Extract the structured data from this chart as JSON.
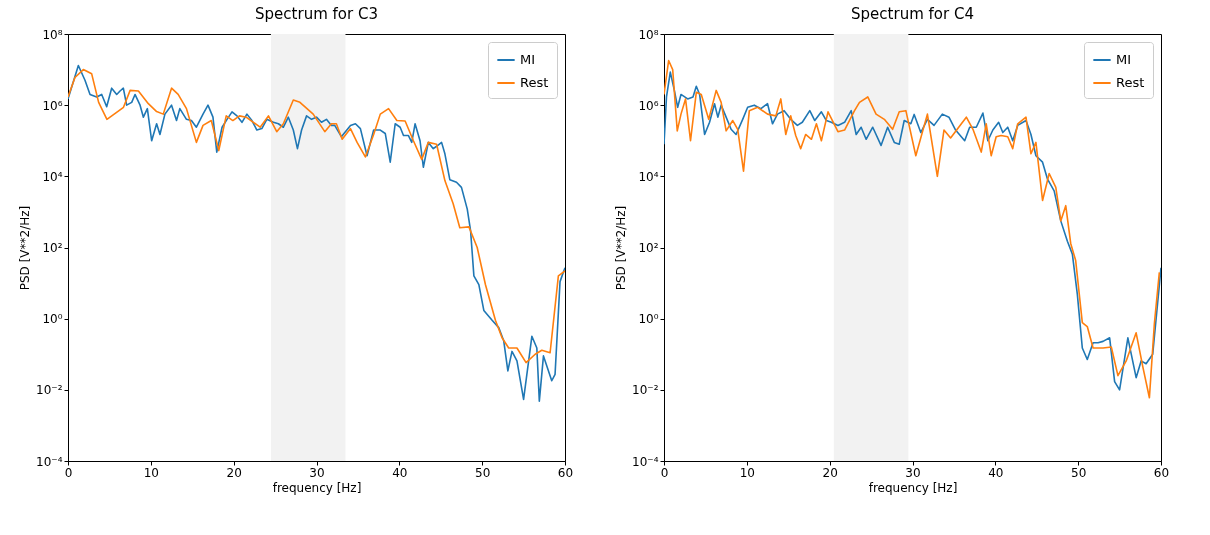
{
  "chart_data": [
    {
      "type": "line",
      "title": "Spectrum for C3",
      "xlabel": "frequency [Hz]",
      "ylabel": "PSD [V**2/Hz]",
      "log": "y",
      "legend": "top right",
      "xlim": [
        0,
        60
      ],
      "xticks": [
        0,
        10,
        20,
        30,
        40,
        50,
        60
      ],
      "ylim": [
        0.0001,
        100000000
      ],
      "yticks": [
        {
          "value": 0.0001,
          "label": "10⁻⁴"
        },
        {
          "value": 0.01,
          "label": "10⁻²"
        },
        {
          "value": 1,
          "label": "10⁰"
        },
        {
          "value": 100,
          "label": "10²"
        },
        {
          "value": 10000,
          "label": "10⁴"
        },
        {
          "value": 1000000,
          "label": "10⁶"
        },
        {
          "value": 100000000,
          "label": "10⁸"
        }
      ],
      "bands": [
        {
          "axis": "x",
          "from": 24.5,
          "to": 33.5,
          "color": "#f2f2f2"
        }
      ],
      "series": [
        {
          "name": "MI",
          "color": "#1f77b4",
          "x": [
            0,
            1.25,
            2.05,
            2.66,
            3.46,
            4.07,
            4.67,
            5.27,
            5.88,
            6.28,
            6.68,
            7.08,
            7.69,
            8.09,
            8.7,
            9.1,
            9.58,
            10.1,
            10.7,
            11.1,
            11.7,
            12.5,
            13.1,
            13.5,
            14.3,
            14.9,
            15.5,
            16.3,
            16.9,
            17.5,
            17.96,
            18.6,
            19.2,
            19.8,
            20.4,
            21.0,
            21.6,
            22.2,
            22.8,
            23.4,
            24.0,
            24.8,
            25.4,
            26.0,
            26.6,
            27.2,
            27.7,
            28.2,
            28.8,
            29.4,
            30.0,
            30.6,
            31.2,
            31.8,
            32.2,
            33.0,
            34.1,
            34.7,
            35.3,
            36.1,
            36.9,
            37.7,
            38.3,
            38.9,
            39.5,
            40.1,
            40.5,
            41.1,
            41.5,
            41.9,
            42.5,
            42.9,
            43.5,
            44.1,
            44.5,
            45.1,
            45.5,
            46.1,
            46.9,
            47.5,
            48.2,
            48.6,
            49.0,
            49.6,
            50.2,
            51.2,
            52.0,
            52.6,
            53.1,
            53.6,
            54.2,
            55.0,
            56.0,
            56.6,
            56.9,
            57.4,
            58.4,
            58.8,
            59.4,
            60.0
          ],
          "values": [
            1500000,
            13000000,
            5000000,
            2000000,
            1700000,
            2000000,
            900000,
            3000000,
            2000000,
            2500000,
            3000000,
            1000000,
            1200000,
            2000000,
            1000000,
            460000,
            800000,
            100000,
            300000,
            150000,
            560000,
            1000000,
            370000,
            800000,
            400000,
            370000,
            240000,
            560000,
            1000000,
            460000,
            48000,
            240000,
            400000,
            650000,
            500000,
            330000,
            560000,
            370000,
            200000,
            220000,
            400000,
            330000,
            300000,
            240000,
            460000,
            200000,
            60000,
            200000,
            500000,
            400000,
            460000,
            330000,
            400000,
            270000,
            270000,
            130000,
            270000,
            300000,
            220000,
            38000,
            200000,
            200000,
            160000,
            25000,
            300000,
            240000,
            140000,
            140000,
            90000,
            300000,
            100000,
            18000,
            90000,
            60000,
            70000,
            90000,
            43000,
            8000,
            6800,
            4900,
            1200,
            300,
            16,
            9,
            1.7,
            0.9,
            0.56,
            0.24,
            0.034,
            0.12,
            0.065,
            0.0054,
            0.32,
            0.15,
            0.0048,
            0.09,
            0.018,
            0.027,
            11,
            27
          ]
        },
        {
          "name": "Rest",
          "color": "#ff7f0e",
          "x": [
            0,
            0.84,
            1.85,
            2.86,
            3.7,
            4.7,
            6.7,
            7.5,
            8.5,
            9.7,
            10.7,
            11.5,
            12.5,
            13.3,
            14.3,
            15.5,
            16.3,
            17.3,
            18.2,
            19.1,
            19.9,
            20.7,
            21.5,
            23.2,
            24.2,
            25.2,
            26.0,
            27.2,
            28.0,
            29.6,
            31.0,
            31.8,
            32.4,
            33.1,
            34.1,
            34.9,
            35.9,
            36.9,
            37.7,
            38.7,
            39.7,
            40.7,
            41.7,
            42.7,
            43.5,
            44.5,
            45.5,
            46.5,
            47.3,
            48.4,
            49.4,
            50.4,
            51.6,
            52.4,
            53.2,
            54.2,
            55.3,
            56.4,
            57.2,
            58.2,
            59.2,
            60.0
          ],
          "values": [
            1700000,
            6000000,
            10000000,
            7600000,
            1200000,
            400000,
            870000,
            2600000,
            2500000,
            1100000,
            660000,
            560000,
            3000000,
            2000000,
            800000,
            90000,
            270000,
            370000,
            53000,
            500000,
            370000,
            500000,
            460000,
            240000,
            500000,
            180000,
            300000,
            1400000,
            1200000,
            560000,
            180000,
            300000,
            300000,
            110000,
            220000,
            90000,
            35000,
            150000,
            560000,
            800000,
            370000,
            360000,
            100000,
            30000,
            90000,
            80000,
            7600,
            1700,
            360,
            380,
            100,
            9,
            0.9,
            0.29,
            0.15,
            0.15,
            0.058,
            0.1,
            0.13,
            0.11,
            16,
            22
          ]
        }
      ]
    },
    {
      "type": "line",
      "title": "Spectrum for C4",
      "xlabel": "frequency [Hz]",
      "ylabel": "PSD [V**2/Hz]",
      "log": "y",
      "legend": "top right",
      "xlim": [
        0,
        60
      ],
      "xticks": [
        0,
        10,
        20,
        30,
        40,
        50,
        60
      ],
      "ylim": [
        0.0001,
        100000000
      ],
      "yticks": [
        {
          "value": 0.0001,
          "label": "10⁻⁴"
        },
        {
          "value": 0.01,
          "label": "10⁻²"
        },
        {
          "value": 1,
          "label": "10⁰"
        },
        {
          "value": 100,
          "label": "10²"
        },
        {
          "value": 10000,
          "label": "10⁴"
        },
        {
          "value": 1000000,
          "label": "10⁶"
        },
        {
          "value": 100000000,
          "label": "10⁸"
        }
      ],
      "bands": [
        {
          "axis": "x",
          "from": 20.5,
          "to": 29.5,
          "color": "#f2f2f2"
        }
      ],
      "series": [
        {
          "name": "MI",
          "color": "#1f77b4",
          "x": [
            0,
            0.3,
            0.76,
            1.25,
            1.65,
            2.05,
            2.86,
            3.5,
            3.9,
            4.3,
            4.9,
            5.5,
            6.1,
            6.5,
            6.9,
            7.5,
            8.1,
            8.7,
            9.5,
            10.1,
            10.9,
            11.7,
            12.5,
            13.1,
            13.7,
            14.5,
            15.3,
            16.1,
            16.7,
            17.6,
            18.2,
            19.0,
            19.6,
            20.2,
            21.0,
            21.8,
            22.6,
            23.2,
            23.8,
            24.4,
            25.2,
            26.2,
            27.0,
            27.8,
            28.4,
            29.0,
            29.8,
            30.2,
            31.0,
            31.8,
            32.6,
            33.6,
            34.4,
            35.2,
            36.3,
            36.9,
            37.7,
            38.5,
            39.1,
            39.7,
            40.4,
            40.9,
            41.5,
            42.1,
            42.7,
            43.7,
            44.3,
            44.9,
            45.7,
            46.3,
            47.1,
            47.9,
            48.7,
            49.3,
            49.9,
            50.5,
            51.1,
            51.8,
            52.4,
            53.0,
            53.8,
            54.4,
            55.0,
            56.0,
            57.0,
            57.6,
            58.2,
            59.0,
            60.0
          ],
          "values": [
            80000,
            1700000,
            8500000,
            2600000,
            870000,
            2000000,
            1500000,
            1700000,
            3400000,
            2000000,
            150000,
            330000,
            1100000,
            460000,
            1000000,
            460000,
            210000,
            150000,
            400000,
            870000,
            1000000,
            800000,
            1100000,
            300000,
            560000,
            700000,
            400000,
            270000,
            330000,
            700000,
            370000,
            650000,
            370000,
            330000,
            270000,
            330000,
            700000,
            150000,
            240000,
            110000,
            240000,
            74000,
            240000,
            90000,
            80000,
            370000,
            300000,
            550000,
            170000,
            400000,
            270000,
            560000,
            460000,
            200000,
            100000,
            240000,
            240000,
            600000,
            100000,
            200000,
            330000,
            170000,
            240000,
            100000,
            270000,
            370000,
            150000,
            38000,
            25000,
            8300,
            3900,
            560,
            150,
            65,
            4.8,
            0.15,
            0.071,
            0.21,
            0.21,
            0.23,
            0.29,
            0.017,
            0.01,
            0.29,
            0.022,
            0.065,
            0.054,
            0.1,
            27
          ]
        },
        {
          "name": "Rest",
          "color": "#ff7f0e",
          "x": [
            0,
            0.56,
            1.05,
            1.6,
            2.05,
            2.6,
            3.2,
            3.9,
            4.5,
            5.4,
            6.3,
            6.9,
            7.5,
            8.3,
            8.9,
            9.6,
            10.3,
            11.3,
            12.5,
            13.5,
            14.1,
            14.7,
            15.3,
            15.9,
            16.5,
            17.1,
            17.8,
            18.4,
            19.0,
            19.8,
            21.0,
            21.8,
            23.0,
            23.6,
            24.6,
            25.6,
            26.6,
            27.6,
            28.4,
            29.2,
            30.4,
            31.8,
            33.0,
            33.8,
            34.6,
            35.9,
            36.5,
            37.3,
            38.3,
            38.9,
            39.5,
            40.1,
            40.7,
            41.5,
            42.1,
            42.7,
            43.7,
            44.3,
            44.9,
            45.7,
            46.5,
            47.3,
            47.9,
            48.5,
            49.1,
            49.7,
            50.5,
            51.1,
            51.8,
            53.0,
            54.0,
            54.8,
            55.8,
            57.0,
            57.8,
            58.6,
            59.2,
            59.8
          ],
          "values": [
            2000000,
            18000000,
            10000000,
            190000,
            560000,
            1500000,
            100000,
            2300000,
            2000000,
            400000,
            2600000,
            1200000,
            190000,
            370000,
            210000,
            14000,
            700000,
            870000,
            560000,
            500000,
            1500000,
            150000,
            500000,
            140000,
            60000,
            150000,
            110000,
            300000,
            100000,
            650000,
            180000,
            200000,
            700000,
            1200000,
            1700000,
            560000,
            400000,
            210000,
            650000,
            700000,
            38000,
            560000,
            10000,
            200000,
            120000,
            300000,
            460000,
            210000,
            48000,
            300000,
            38000,
            130000,
            140000,
            130000,
            60000,
            300000,
            460000,
            43000,
            90000,
            2100,
            12000,
            4900,
            560,
            1500,
            130,
            43,
            0.77,
            0.6,
            0.15,
            0.15,
            0.16,
            0.025,
            0.065,
            0.4,
            0.045,
            0.006,
            0.73,
            20
          ]
        }
      ]
    }
  ]
}
